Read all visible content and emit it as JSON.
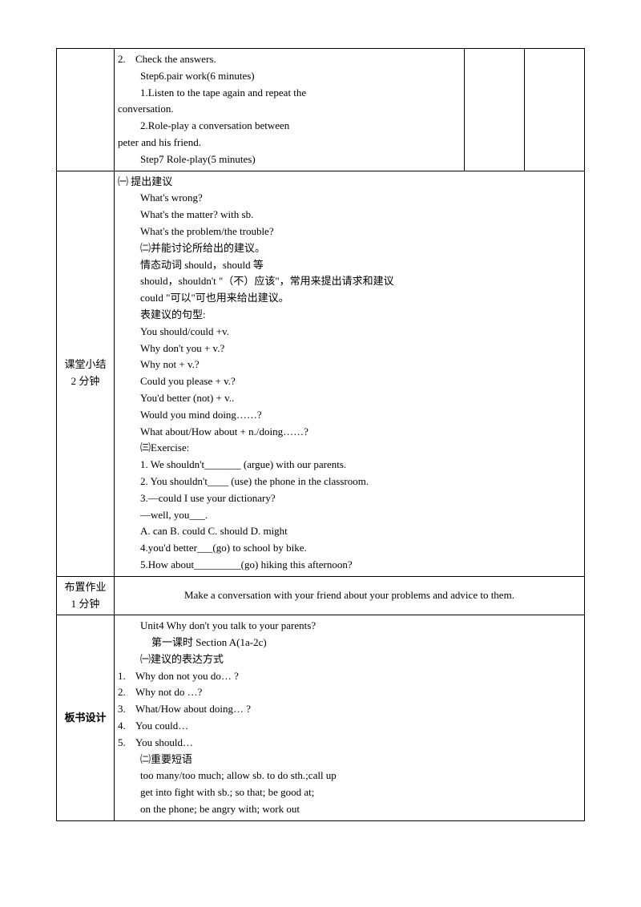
{
  "row1": {
    "lines": [
      {
        "num": "2.",
        "text": "Check the answers.",
        "cls": "numbered"
      },
      {
        "text": "Step6.pair work(6 minutes)",
        "cls": "indent1"
      },
      {
        "text": "1.Listen to the tape again and repeat the",
        "cls": "indent1"
      },
      {
        "text": "conversation.",
        "cls": "no-indent"
      },
      {
        "text": "2.Role-play a conversation between",
        "cls": "indent1"
      },
      {
        "text": "peter and his friend.",
        "cls": "no-indent"
      },
      {
        "text": "Step7 Role-play(5 minutes)",
        "cls": "indent1"
      }
    ]
  },
  "row2": {
    "label_line1": "课堂小结",
    "label_line2": "2 分钟",
    "lines": [
      {
        "text": "㈠   提出建议",
        "cls": "no-indent"
      },
      {
        "text": "What's wrong?",
        "cls": "indent1"
      },
      {
        "text": "What's the matter? with sb.",
        "cls": "indent1"
      },
      {
        "text": "What's the problem/the trouble?",
        "cls": "indent1"
      },
      {
        "text": "㈡并能讨论所给出的建议。",
        "cls": "indent1"
      },
      {
        "text": "情态动词 should，should 等",
        "cls": "indent1"
      },
      {
        "text": "should，shouldn't \"（不）应该\"，常用来提出请求和建议",
        "cls": "indent1"
      },
      {
        "text": "could \"可以\"可也用来给出建议。",
        "cls": "indent1"
      },
      {
        "text": "表建议的句型:",
        "cls": "indent1"
      },
      {
        "text": "You should/could +v.",
        "cls": "indent1"
      },
      {
        "text": "Why don't you + v.?",
        "cls": "indent1"
      },
      {
        "text": "Why not + v.?",
        "cls": "indent1"
      },
      {
        "text": "Could you please + v.?",
        "cls": "indent1"
      },
      {
        "text": "You'd better (not) + v..",
        "cls": "indent1"
      },
      {
        "text": "Would you mind doing……?",
        "cls": "indent1"
      },
      {
        "text": "What about/How about + n./doing……?",
        "cls": "indent1"
      },
      {
        "text": "㈢Exercise:",
        "cls": "indent1"
      },
      {
        "text": "1. We shouldn't_______ (argue) with our parents.",
        "cls": "indent1"
      },
      {
        "text": "2. You shouldn't____ (use) the phone in the classroom.",
        "cls": "indent1"
      },
      {
        "text": "3.—could I use your dictionary?",
        "cls": "indent1"
      },
      {
        "text": "—well, you___.",
        "cls": "indent1"
      },
      {
        "text": "A. can B. could C. should D. might",
        "cls": "indent1"
      },
      {
        "text": "4.you'd better___(go) to school by bike.",
        "cls": "indent1"
      },
      {
        "text": "5.How about_________(go) hiking this afternoon?",
        "cls": "indent1"
      }
    ]
  },
  "row3": {
    "label_line1": "布置作业",
    "label_line2": "1 分钟",
    "text": "Make a conversation with your friend about your problems and advice to them."
  },
  "row4": {
    "label": "板书设计",
    "lines": [
      {
        "text": "Unit4 Why don't you talk to your parents?",
        "cls": "indent1"
      },
      {
        "text": "第一课时  Section A(1a-2c)",
        "cls": "indent2"
      },
      {
        "text": "㈠建议的表达方式",
        "cls": "indent1"
      },
      {
        "num": "1.",
        "text": "Why don not you do… ?",
        "cls": "numbered"
      },
      {
        "num": "2.",
        "text": "Why not do …?",
        "cls": "numbered"
      },
      {
        "num": "3.",
        "text": "What/How about doing… ?",
        "cls": "numbered"
      },
      {
        "num": "4.",
        "text": "You could…",
        "cls": "numbered"
      },
      {
        "num": "5.",
        "text": "You should…",
        "cls": "numbered"
      },
      {
        "text": "㈡重要短语",
        "cls": "indent1"
      },
      {
        "text": "too many/too much; allow sb. to do sth.;call up",
        "cls": "indent1"
      },
      {
        "text": "get into fight with sb.; so that; be good at;",
        "cls": "indent1"
      },
      {
        "text": "on the phone; be angry with; work out",
        "cls": "indent1"
      },
      {
        "text": " ",
        "cls": "indent1"
      }
    ]
  }
}
